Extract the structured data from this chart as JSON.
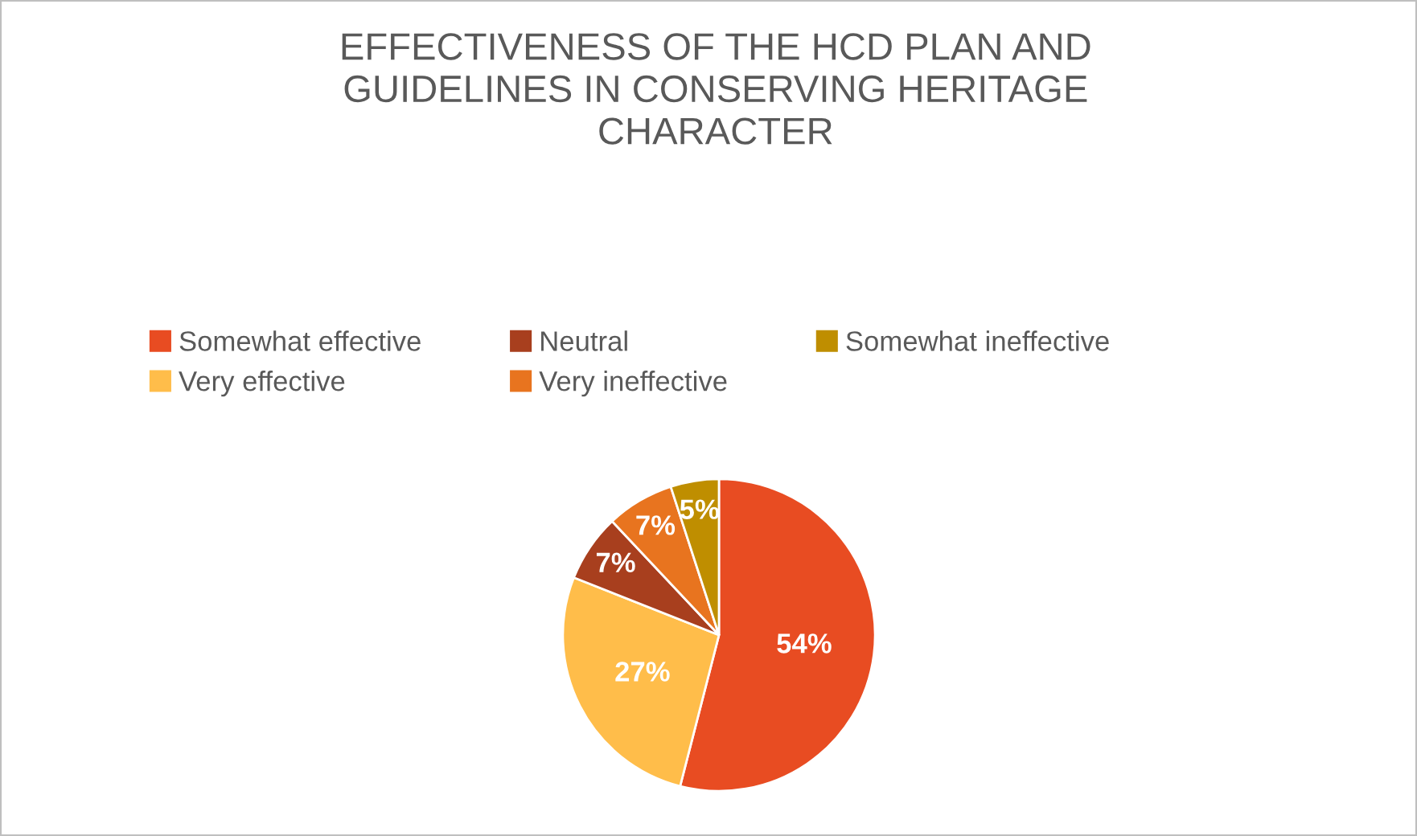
{
  "chart_data": {
    "type": "pie",
    "title": "EFFECTIVENESS OF THE HCD PLAN AND\nGUIDELINES IN CONSERVING HERITAGE\nCHARACTER",
    "categories": [
      "Somewhat effective",
      "Very effective",
      "Neutral",
      "Very ineffective",
      "Somewhat ineffective"
    ],
    "values": [
      54,
      27,
      7,
      7,
      5
    ],
    "colors": [
      "#e84c22",
      "#ffbd4a",
      "#a83f1e",
      "#e8741f",
      "#bf8e00"
    ],
    "value_labels": [
      "54%",
      "27%",
      "7%",
      "7%",
      "5%"
    ],
    "legend": "top"
  }
}
